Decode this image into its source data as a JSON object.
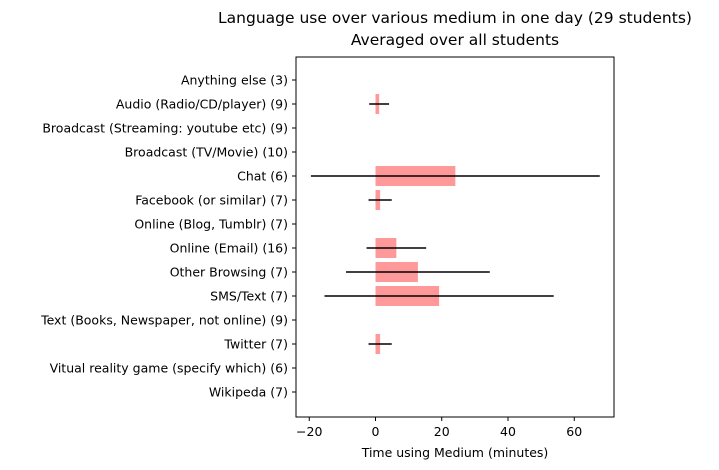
{
  "chart_data": {
    "type": "bar",
    "orientation": "horizontal",
    "title": "Language use over various medium in one day (29 students)",
    "subtitle": "Averaged over all students",
    "xlabel": "Time using Medium (minutes)",
    "ylabel": "",
    "xlim": [
      -24,
      72
    ],
    "xticks": [
      -20,
      0,
      20,
      40,
      60
    ],
    "grid": false,
    "bar_color": "#ff9999",
    "error_color": "#000000",
    "categories": [
      "Anything else (3)",
      "Audio (Radio/CD/player) (9)",
      "Broadcast (Streaming: youtube etc) (9)",
      "Broadcast (TV/Movie) (10)",
      "Chat (6)",
      "Facebook (or similar) (7)",
      "Online (Blog, Tumblr) (7)",
      "Online (Email) (16)",
      "Other Browsing (7)",
      "SMS/Text (7)",
      "Text (Books, Newspaper, not online) (9)",
      "Twitter (7)",
      "Vitual reality game (specify which) (6)",
      "Wikipeda (7)"
    ],
    "values": [
      0,
      1.1,
      0,
      0,
      24.1,
      1.4,
      0,
      6.3,
      12.8,
      19.2,
      0,
      1.4,
      0,
      0
    ],
    "errors": [
      0,
      3.0,
      0,
      0,
      43.6,
      3.5,
      0,
      9.0,
      21.7,
      34.6,
      0,
      3.5,
      0,
      0
    ]
  }
}
